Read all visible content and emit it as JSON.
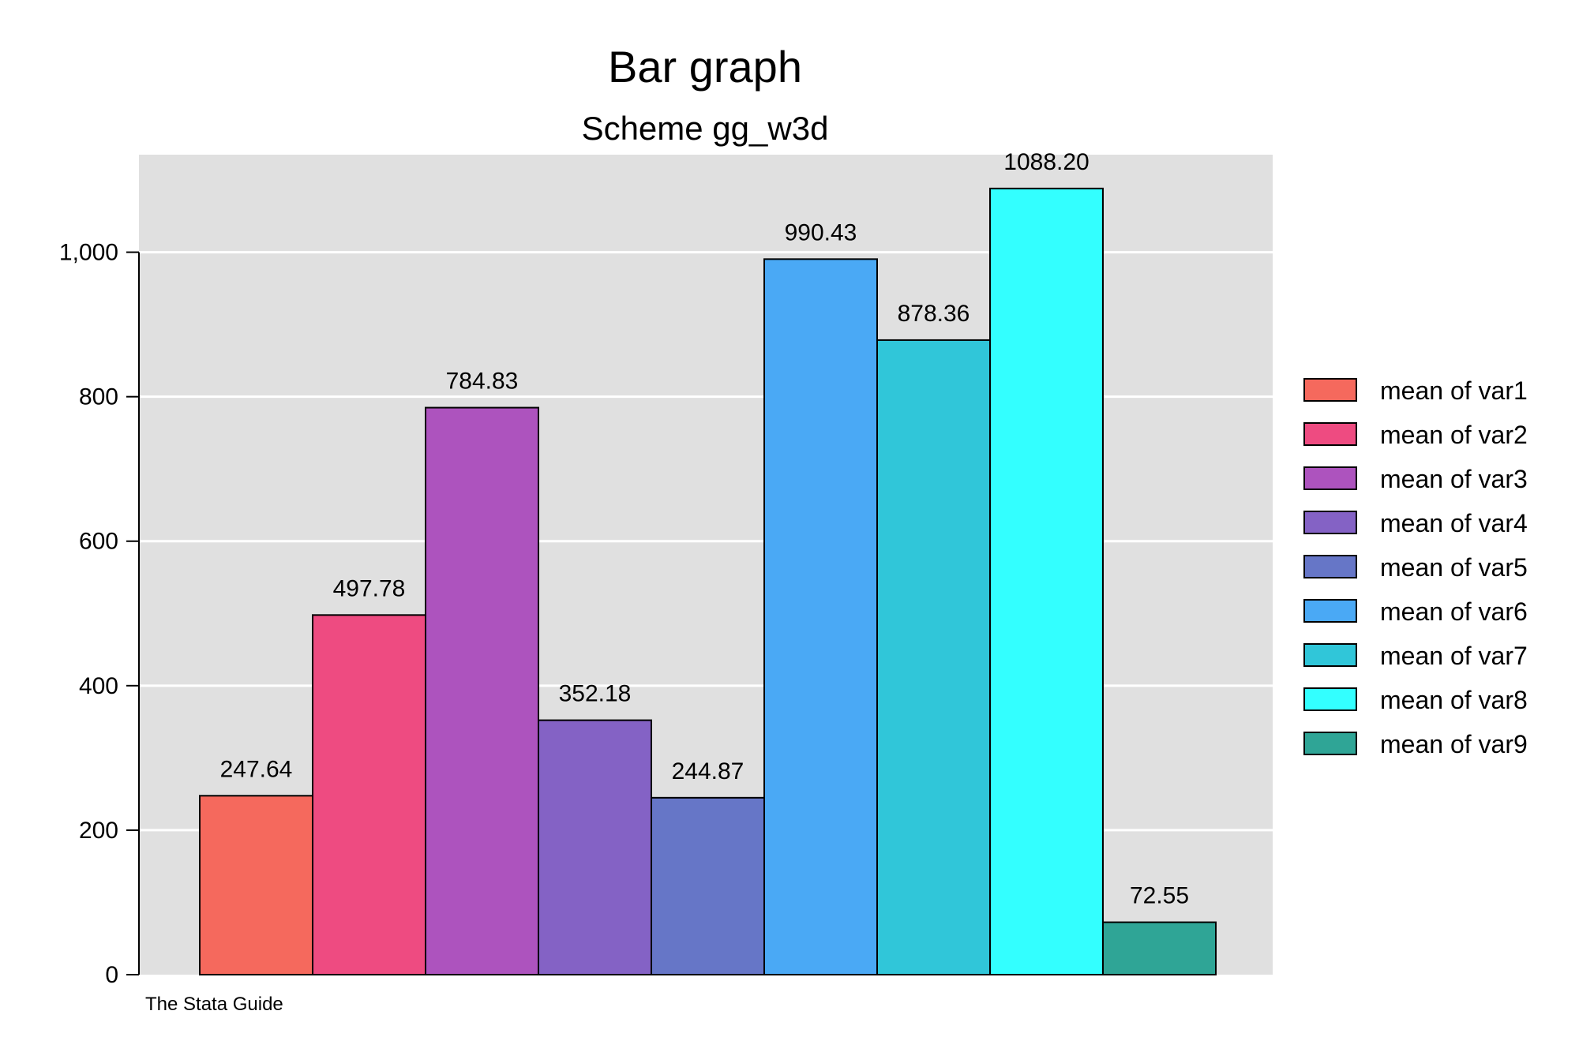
{
  "chart_data": {
    "type": "bar",
    "title": "Bar graph",
    "subtitle": "Scheme gg_w3d",
    "note": "The Stata Guide",
    "xlabel": "",
    "ylabel": "",
    "ylim": [
      0,
      1135
    ],
    "yticks": [
      0,
      200,
      400,
      600,
      800,
      1000
    ],
    "ytick_labels": [
      "0",
      "200",
      "400",
      "600",
      "800",
      "1,000"
    ],
    "grid": true,
    "legend_position": "right",
    "series": [
      {
        "name": "mean of var1",
        "value": 247.64,
        "label": "247.64",
        "color": "#f5695d"
      },
      {
        "name": "mean of var2",
        "value": 497.78,
        "label": "497.78",
        "color": "#ee4b81"
      },
      {
        "name": "mean of var3",
        "value": 784.83,
        "label": "784.83",
        "color": "#ad53be"
      },
      {
        "name": "mean of var4",
        "value": 352.18,
        "label": "352.18",
        "color": "#8462c5"
      },
      {
        "name": "mean of var5",
        "value": 244.87,
        "label": "244.87",
        "color": "#6676c7"
      },
      {
        "name": "mean of var6",
        "value": 990.43,
        "label": "990.43",
        "color": "#4aa9f5"
      },
      {
        "name": "mean of var7",
        "value": 878.36,
        "label": "878.36",
        "color": "#30c6d9"
      },
      {
        "name": "mean of var8",
        "value": 1088.2,
        "label": "1088.20",
        "color": "#33ffff"
      },
      {
        "name": "mean of var9",
        "value": 72.55,
        "label": "72.55",
        "color": "#2fa596"
      }
    ]
  }
}
